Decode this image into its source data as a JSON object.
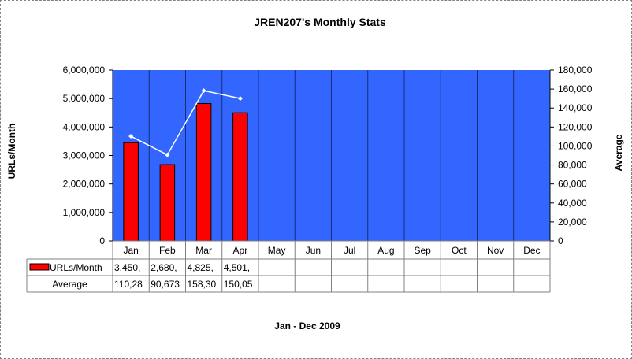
{
  "chart_data": {
    "type": "bar",
    "title": "JREN207's Monthly Stats",
    "xlabel": "Jan - Dec 2009",
    "ylabel": "URLs/Month",
    "y2label": "Average",
    "categories": [
      "Jan",
      "Feb",
      "Mar",
      "Apr",
      "May",
      "Jun",
      "Jul",
      "Aug",
      "Sep",
      "Oct",
      "Nov",
      "Dec"
    ],
    "ylim": [
      0,
      6000000
    ],
    "y2lim": [
      0,
      180000
    ],
    "yticks": [
      "0",
      "1,000,000",
      "2,000,000",
      "3,000,000",
      "4,000,000",
      "5,000,000",
      "6,000,000"
    ],
    "y2ticks": [
      "0",
      "20,000",
      "40,000",
      "60,000",
      "80,000",
      "100,000",
      "120,000",
      "140,000",
      "160,000",
      "180,000"
    ],
    "grid": true,
    "series": [
      {
        "name": "URLs/Month",
        "type": "bar",
        "axis": "left",
        "values": [
          3450000,
          2680000,
          4825000,
          4501000,
          null,
          null,
          null,
          null,
          null,
          null,
          null,
          null
        ],
        "table_text": [
          "3,450,",
          "2,680,",
          "4,825,",
          "4,501,",
          "",
          "",
          "",
          "",
          "",
          "",
          "",
          ""
        ]
      },
      {
        "name": "Average",
        "type": "line",
        "axis": "right",
        "values": [
          110280,
          90673,
          158300,
          150050,
          null,
          null,
          null,
          null,
          null,
          null,
          null,
          null
        ],
        "table_text": [
          "110,28",
          "90,673",
          "158,30",
          "150,05",
          "",
          "",
          "",
          "",
          "",
          "",
          "",
          ""
        ]
      }
    ],
    "colors": {
      "plot_bg": "#3366FF",
      "bar_fill": "#FF0000",
      "bar_stroke": "#000000",
      "line": "#FFFFFF",
      "grid": "#000000"
    }
  }
}
